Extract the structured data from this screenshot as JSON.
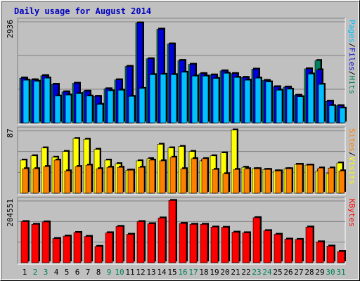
{
  "title": "Daily usage for August 2014",
  "colors": {
    "background": "#c0c0c0",
    "plot_bg": "#c0c0c0",
    "grid": "#808080",
    "title": "#0000c0",
    "hits": "#00805c",
    "files": "#0000d8",
    "pages": "#00c0ff",
    "visits": "#ffff00",
    "sites": "#ff8000",
    "kbytes": "#ff0000",
    "weekend_label": "#00805c",
    "weekday_label": "#000000"
  },
  "chart_data": [
    {
      "type": "bar",
      "panel": "hits-files-pages",
      "categories": [
        "1",
        "2",
        "3",
        "4",
        "5",
        "6",
        "7",
        "8",
        "9",
        "10",
        "11",
        "12",
        "13",
        "14",
        "15",
        "16",
        "17",
        "18",
        "19",
        "20",
        "21",
        "22",
        "23",
        "24",
        "25",
        "26",
        "27",
        "28",
        "29",
        "30",
        "31"
      ],
      "weekend_days": [
        "2",
        "3",
        "9",
        "10",
        "16",
        "17",
        "23",
        "24",
        "30",
        "31"
      ],
      "ymax_label": "2936",
      "ylim": [
        0,
        2936
      ],
      "legend": [
        {
          "text": "Pages",
          "color": "#00c0ff"
        },
        {
          "text": "/",
          "color": "#000000"
        },
        {
          "text": "Files",
          "color": "#0000d8"
        },
        {
          "text": "/",
          "color": "#000000"
        },
        {
          "text": "Hits",
          "color": "#00805c"
        }
      ],
      "series": [
        {
          "key": "hits",
          "values": [
            1300,
            1250,
            1370,
            1120,
            900,
            1150,
            920,
            770,
            990,
            1250,
            1640,
            2900,
            1860,
            2720,
            2290,
            1810,
            1700,
            1430,
            1390,
            1510,
            1430,
            1320,
            1560,
            1230,
            1050,
            1040,
            800,
            1570,
            1810,
            630,
            500
          ]
        },
        {
          "key": "files",
          "values": [
            1300,
            1250,
            1370,
            1120,
            900,
            1150,
            920,
            770,
            990,
            1250,
            1640,
            2900,
            1860,
            2720,
            2290,
            1810,
            1700,
            1430,
            1390,
            1510,
            1430,
            1320,
            1560,
            1230,
            1050,
            1040,
            800,
            1570,
            1540,
            630,
            500
          ]
        },
        {
          "key": "pages",
          "values": [
            1240,
            1210,
            1300,
            780,
            810,
            850,
            780,
            540,
            930,
            950,
            770,
            1000,
            1400,
            1410,
            1400,
            1470,
            1360,
            1360,
            1290,
            1440,
            1320,
            1240,
            1300,
            1190,
            950,
            980,
            760,
            1420,
            1120,
            500,
            430
          ]
        }
      ]
    },
    {
      "type": "bar",
      "panel": "visits-sites",
      "categories": [
        "1",
        "2",
        "3",
        "4",
        "5",
        "6",
        "7",
        "8",
        "9",
        "10",
        "11",
        "12",
        "13",
        "14",
        "15",
        "16",
        "17",
        "18",
        "19",
        "20",
        "21",
        "22",
        "23",
        "24",
        "25",
        "26",
        "27",
        "28",
        "29",
        "30",
        "31"
      ],
      "ymax_label": "87",
      "ylim": [
        0,
        87
      ],
      "legend": [
        {
          "text": "Sites",
          "color": "#ff8000"
        },
        {
          "text": "/",
          "color": "#000000"
        },
        {
          "text": "Visits",
          "color": "#ffff00"
        }
      ],
      "series": [
        {
          "key": "visits",
          "values": [
            46,
            52,
            63,
            50,
            58,
            76,
            75,
            61,
            46,
            41,
            32,
            45,
            48,
            68,
            63,
            65,
            58,
            45,
            52,
            56,
            88,
            36,
            34,
            33,
            31,
            34,
            40,
            39,
            31,
            27,
            42
          ]
        },
        {
          "key": "sites",
          "values": [
            34,
            34,
            37,
            46,
            31,
            37,
            39,
            34,
            36,
            36,
            32,
            36,
            46,
            45,
            50,
            34,
            48,
            48,
            33,
            27,
            33,
            34,
            34,
            33,
            31,
            34,
            40,
            39,
            35,
            35,
            31
          ]
        }
      ]
    },
    {
      "type": "bar",
      "panel": "kbytes",
      "categories": [
        "1",
        "2",
        "3",
        "4",
        "5",
        "6",
        "7",
        "8",
        "9",
        "10",
        "11",
        "12",
        "13",
        "14",
        "15",
        "16",
        "17",
        "18",
        "19",
        "20",
        "21",
        "22",
        "23",
        "24",
        "25",
        "26",
        "27",
        "28",
        "29",
        "30",
        "31"
      ],
      "ymax_label": "204551",
      "ylim": [
        0,
        204551
      ],
      "legend": [
        {
          "text": "KBytes",
          "color": "#ff0000"
        }
      ],
      "series": [
        {
          "key": "kbytes",
          "values": [
            136000,
            127000,
            135000,
            80000,
            88000,
            100000,
            87000,
            54000,
            99000,
            120000,
            94000,
            136000,
            129000,
            148000,
            206000,
            130000,
            127000,
            127000,
            118000,
            117000,
            101000,
            99000,
            149000,
            106000,
            94000,
            78000,
            77000,
            118000,
            69000,
            55000,
            37000
          ]
        }
      ]
    }
  ]
}
